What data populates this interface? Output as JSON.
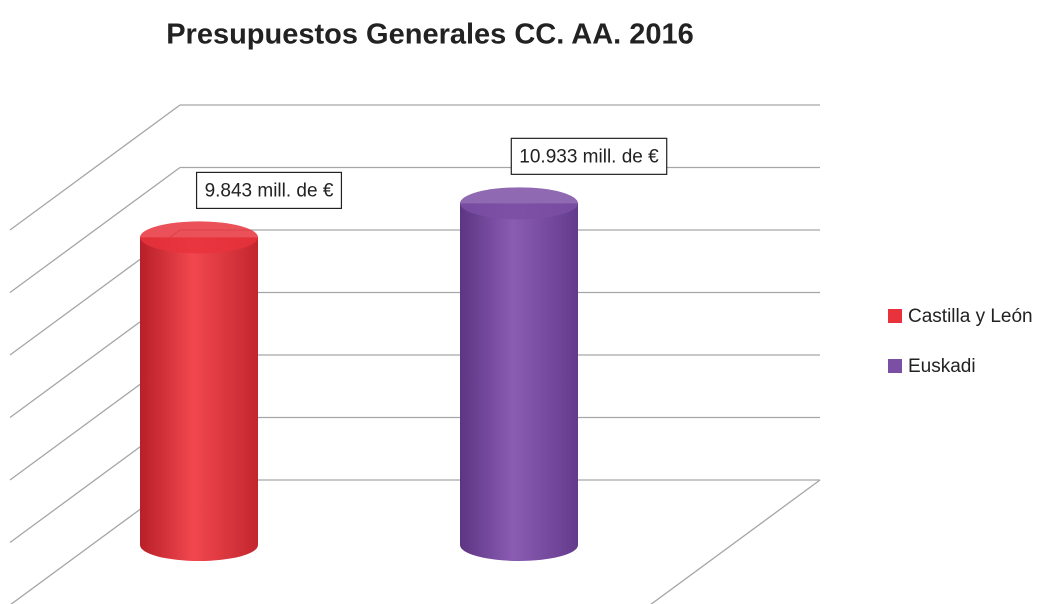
{
  "chart_data": {
    "type": "cylinder",
    "title": "Presupuestos Generales CC. AA. 2016",
    "series": [
      {
        "name": "Castilla y León",
        "color": "#e8323c",
        "values": [
          9843
        ],
        "value_labels": [
          "9.843 mill. de €"
        ]
      },
      {
        "name": "Euskadi",
        "color": "#7b4fa3",
        "values": [
          10933
        ],
        "value_labels": [
          "10.933 mill. de €"
        ]
      }
    ],
    "ylim": [
      0,
      12000
    ],
    "yticks": [
      0,
      2000,
      4000,
      6000,
      8000,
      10000,
      12000
    ],
    "grid": true,
    "legend": "right"
  }
}
